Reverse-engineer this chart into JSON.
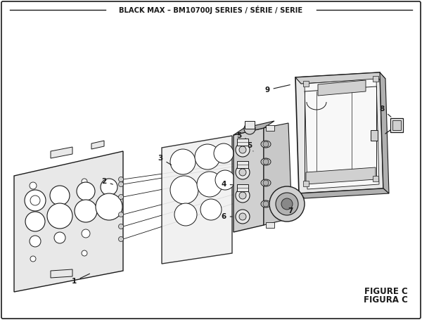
{
  "title": "BLACK MAX – BM10700J SERIES / SÉRIE / SERIE",
  "figure_label": "FIGURE C",
  "figura_label": "FIGURA C",
  "bg_color": "#ffffff",
  "lc": "#1a1a1a",
  "part_face": "#e8e8e8",
  "part_mid": "#d0d0d0",
  "part_dark": "#b0b0b0",
  "part_light": "#f2f2f2",
  "white": "#ffffff"
}
